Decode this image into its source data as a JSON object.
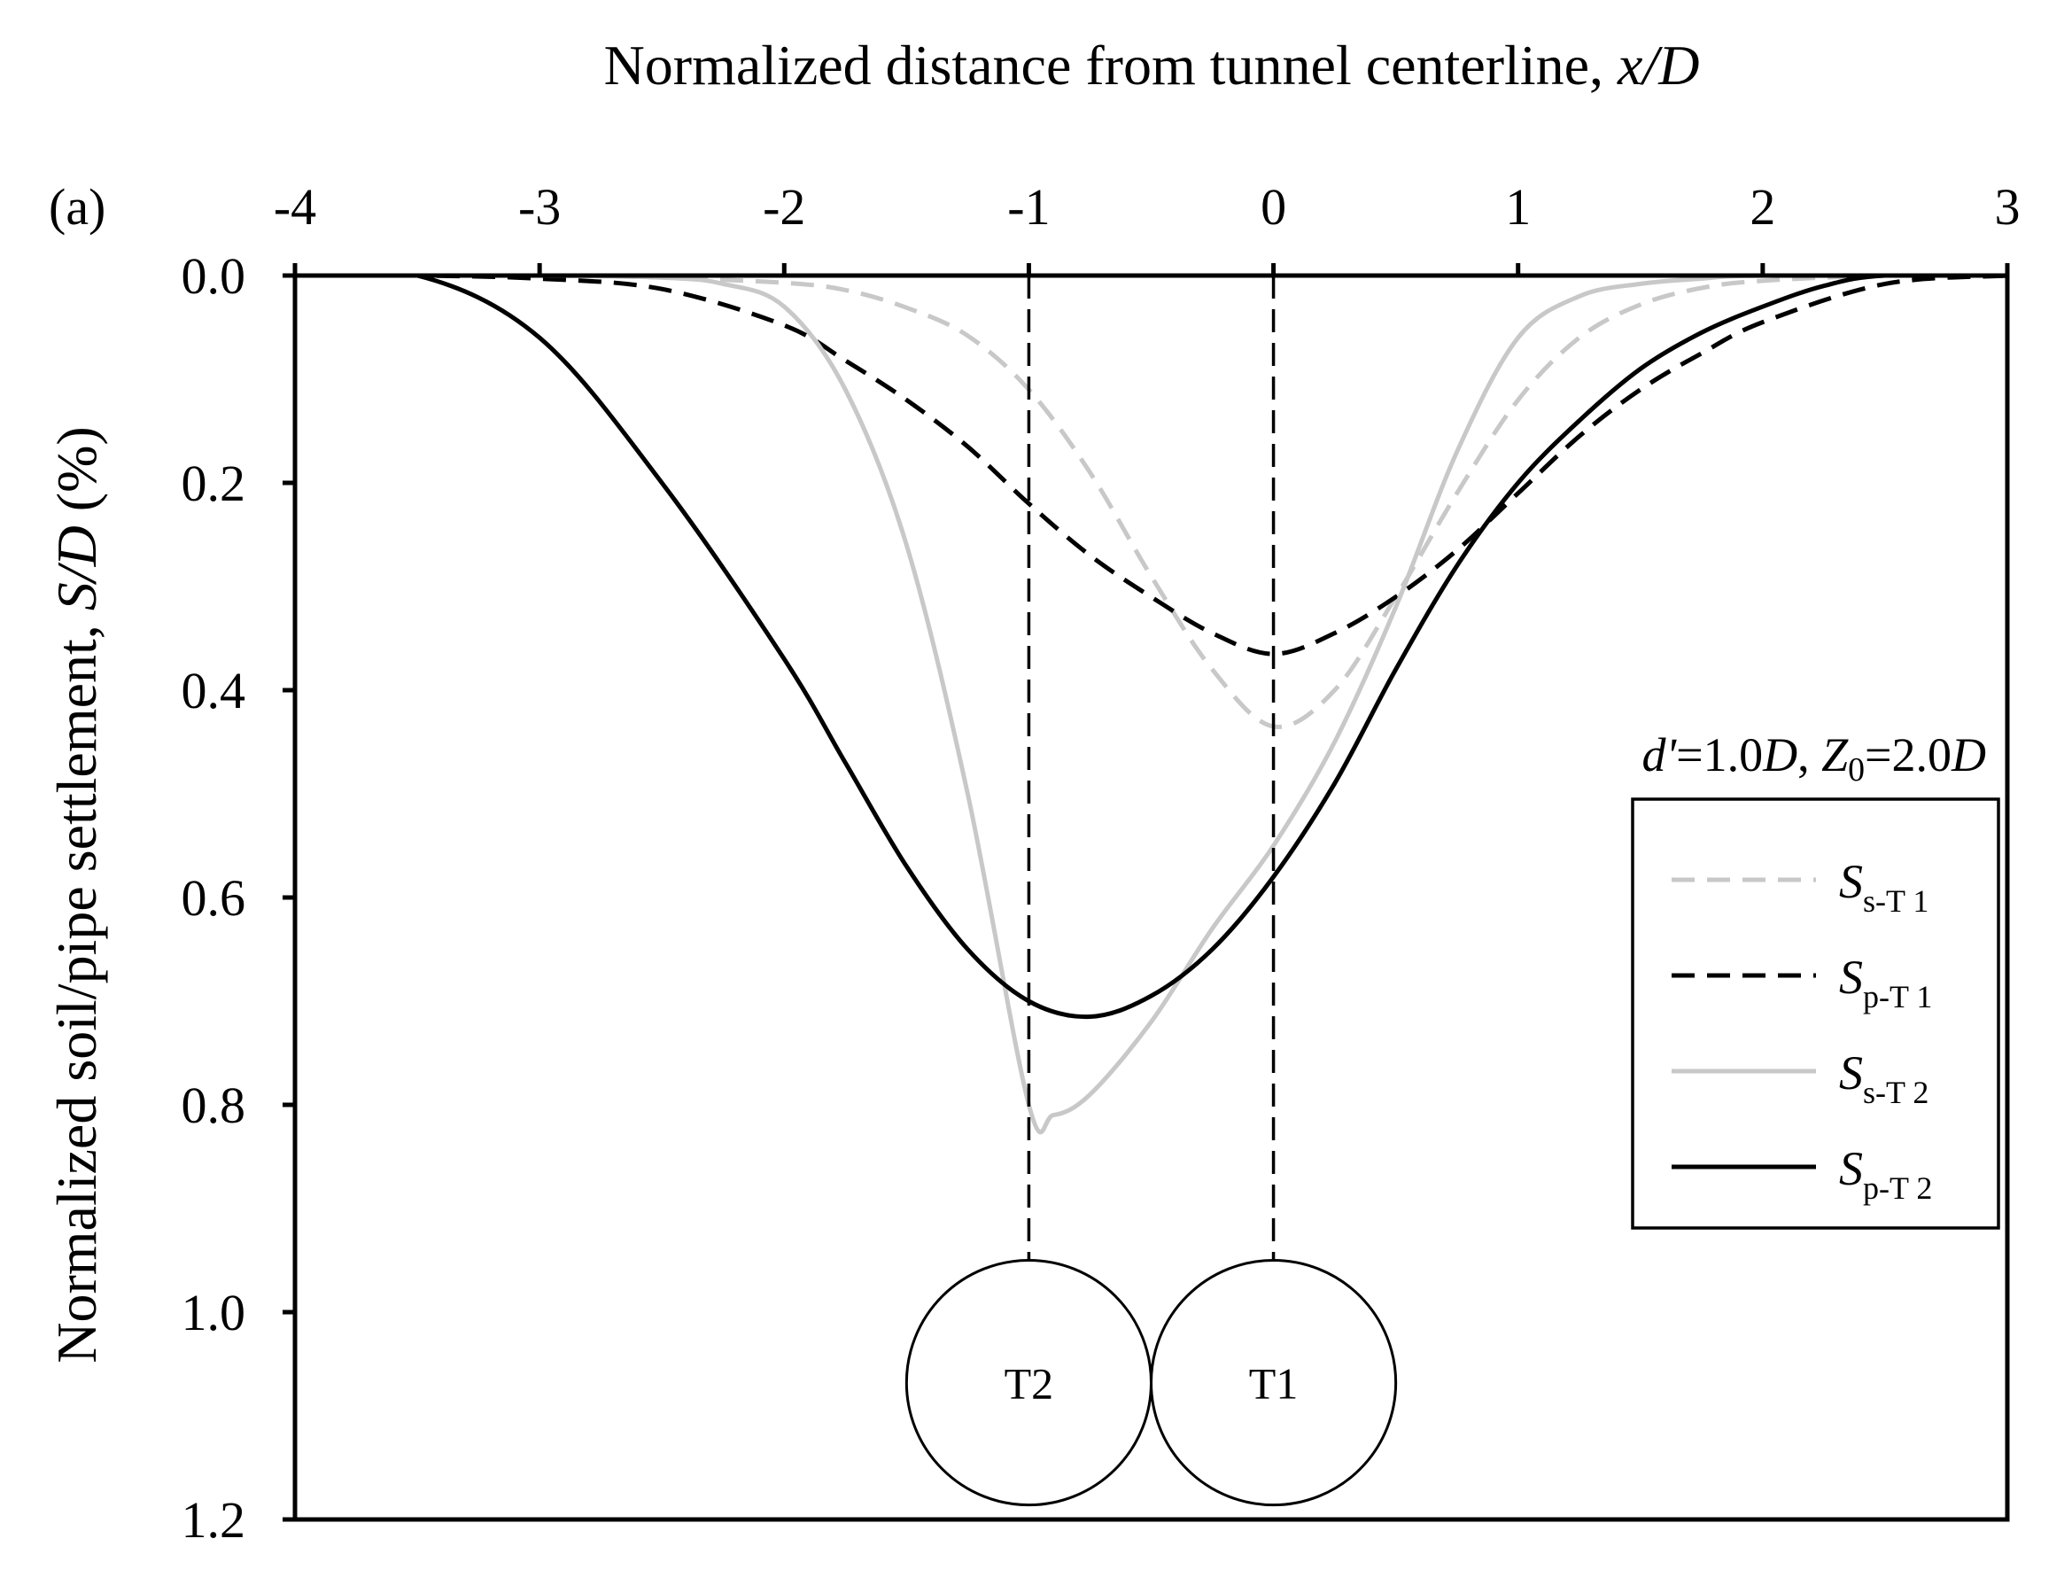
{
  "chart_data": {
    "type": "line",
    "panel_label": "(a)",
    "xlabel": "Normalized distance from tunnel centerline, x/D",
    "xlabel_parts": [
      {
        "text": "Normalized distance from tunnel centerline, ",
        "italic": false
      },
      {
        "text": "x/D",
        "italic": true
      }
    ],
    "ylabel": "Normalized soil/pipe settlement, S/D (%)",
    "ylabel_parts": [
      {
        "text": "Normalized soil/pipe settlement, ",
        "italic": false
      },
      {
        "text": "S/D",
        "italic": true
      },
      {
        "text": " (%)",
        "italic": false
      }
    ],
    "x_axis_position": "top",
    "xlim": [
      -4,
      3
    ],
    "ylim": [
      0,
      1.2
    ],
    "y_inverted": true,
    "xticks": [
      -4,
      -3,
      -2,
      -1,
      0,
      1,
      2,
      3
    ],
    "xtick_labels": [
      "-4",
      "-3",
      "-2",
      "-1",
      "0",
      "1",
      "2",
      "3"
    ],
    "yticks": [
      0,
      0.2,
      0.4,
      0.6,
      0.8,
      1.0,
      1.2
    ],
    "ytick_labels": [
      "0.0",
      "0.2",
      "0.4",
      "0.6",
      "0.8",
      "1.0",
      "1.2"
    ],
    "grid": false,
    "legend_position": "right",
    "annotation": "d'=1.0D, Z0=2.0D",
    "annotation_parts": [
      {
        "text": "d'",
        "italic": true,
        "sub": false
      },
      {
        "text": "=1.0",
        "italic": false,
        "sub": false
      },
      {
        "text": "D",
        "italic": true,
        "sub": false
      },
      {
        "text": ", ",
        "italic": false,
        "sub": false
      },
      {
        "text": "Z",
        "italic": true,
        "sub": false
      },
      {
        "text": "0",
        "italic": false,
        "sub": true
      },
      {
        "text": "=2.0",
        "italic": false,
        "sub": false
      },
      {
        "text": "D",
        "italic": true,
        "sub": false
      }
    ],
    "tunnels": [
      {
        "label": "T2",
        "center_x": -1.0
      },
      {
        "label": "T1",
        "center_x": 0.0
      }
    ],
    "series": [
      {
        "name": "Ss-T1",
        "base": "S",
        "subscript": "s-T 1",
        "color": "#c8c8c8",
        "dashed": true,
        "x": [
          -4.0,
          -3.0,
          -2.5,
          -2.0,
          -1.75,
          -1.5,
          -1.25,
          -1.0,
          -0.75,
          -0.5,
          -0.25,
          0.0,
          0.25,
          0.5,
          0.75,
          1.0,
          1.25,
          1.5,
          1.75,
          2.0,
          2.5,
          3.0
        ],
        "y": [
          0.0,
          0.0,
          0.002,
          0.007,
          0.014,
          0.031,
          0.058,
          0.11,
          0.19,
          0.29,
          0.38,
          0.435,
          0.4,
          0.31,
          0.21,
          0.12,
          0.06,
          0.028,
          0.012,
          0.005,
          0.0,
          0.0
        ]
      },
      {
        "name": "Sp-T1",
        "base": "S",
        "subscript": "p-T 1",
        "color": "#000000",
        "dashed": true,
        "x": [
          -4.0,
          -3.5,
          -3.0,
          -2.5,
          -2.0,
          -1.75,
          -1.5,
          -1.25,
          -1.0,
          -0.75,
          -0.5,
          -0.25,
          0.0,
          0.25,
          0.5,
          0.75,
          1.0,
          1.25,
          1.5,
          1.75,
          2.0,
          2.5,
          3.0
        ],
        "y": [
          0.0,
          0.0,
          0.003,
          0.013,
          0.048,
          0.082,
          0.12,
          0.165,
          0.22,
          0.27,
          0.31,
          0.345,
          0.365,
          0.345,
          0.31,
          0.265,
          0.21,
          0.155,
          0.11,
          0.075,
          0.045,
          0.008,
          0.0
        ]
      },
      {
        "name": "Ss-T2",
        "base": "S",
        "subscript": "s-T 2",
        "color": "#c8c8c8",
        "dashed": false,
        "x": [
          -4.0,
          -3.0,
          -2.5,
          -2.25,
          -2.0,
          -1.75,
          -1.5,
          -1.25,
          -1.0,
          -0.9,
          -0.75,
          -0.5,
          -0.25,
          0.0,
          0.25,
          0.5,
          0.75,
          1.0,
          1.25,
          1.5,
          1.75,
          2.0,
          3.0
        ],
        "y": [
          0.0,
          0.0,
          0.002,
          0.008,
          0.03,
          0.11,
          0.26,
          0.5,
          0.8,
          0.81,
          0.79,
          0.72,
          0.63,
          0.55,
          0.45,
          0.32,
          0.17,
          0.06,
          0.02,
          0.008,
          0.003,
          0.0,
          0.0
        ]
      },
      {
        "name": "Sp-T2",
        "base": "S",
        "subscript": "p-T 2",
        "color": "#000000",
        "dashed": false,
        "x": [
          -4.0,
          -3.5,
          -3.0,
          -2.5,
          -2.0,
          -1.75,
          -1.5,
          -1.25,
          -1.0,
          -0.75,
          -0.5,
          -0.25,
          0.0,
          0.25,
          0.5,
          0.75,
          1.0,
          1.25,
          1.5,
          1.75,
          2.0,
          2.25,
          2.5,
          3.0
        ],
        "y": [
          0.0,
          0.0,
          0.06,
          0.2,
          0.37,
          0.47,
          0.57,
          0.65,
          0.7,
          0.715,
          0.695,
          0.65,
          0.58,
          0.49,
          0.38,
          0.28,
          0.2,
          0.14,
          0.09,
          0.055,
          0.03,
          0.01,
          0.0,
          0.0
        ]
      }
    ]
  }
}
